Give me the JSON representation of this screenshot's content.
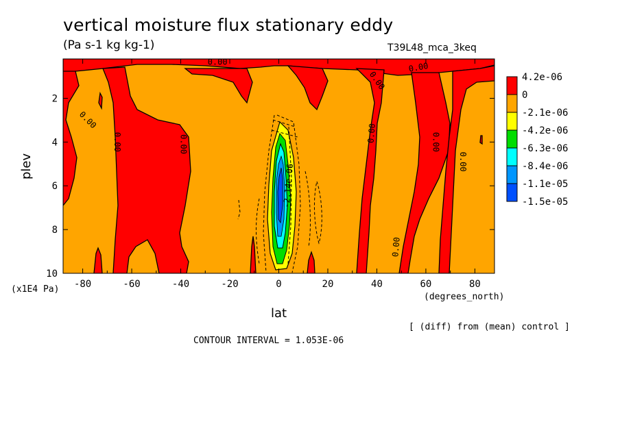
{
  "title": "vertical moisture flux stationary eddy",
  "subtitle": "(Pa s-1 kg kg-1)",
  "run_name": "T39L48_mca_3keq",
  "xunit": "(degrees_north)",
  "yunit": "(x1E4 Pa)",
  "diff_note": "[ (diff) from (mean) control ]",
  "contour_interval": "CONTOUR INTERVAL = 1.053E-06",
  "colors": {
    "red": "#ff0000",
    "orange": "#ffa500",
    "yellow": "#ffff00",
    "green": "#00dd00",
    "cyan": "#00ffff",
    "lightblue": "#0096ff",
    "blue": "#0050ff"
  },
  "chart_data": {
    "type": "heatmap",
    "title": "vertical moisture flux stationary eddy",
    "xlabel": "lat",
    "ylabel": "plev",
    "xlim": [
      -88,
      88
    ],
    "ylim": [
      10,
      0.2
    ],
    "x_ticks": [
      {
        "value": -80,
        "label": "-80"
      },
      {
        "value": -60,
        "label": "-60"
      },
      {
        "value": -40,
        "label": "-40"
      },
      {
        "value": -20,
        "label": "-20"
      },
      {
        "value": 0,
        "label": "0"
      },
      {
        "value": 20,
        "label": "20"
      },
      {
        "value": 40,
        "label": "40"
      },
      {
        "value": 60,
        "label": "60"
      },
      {
        "value": 80,
        "label": "80"
      }
    ],
    "y_ticks": [
      {
        "value": 2,
        "label": "2"
      },
      {
        "value": 4,
        "label": "4"
      },
      {
        "value": 6,
        "label": "6"
      },
      {
        "value": 8,
        "label": "8"
      },
      {
        "value": 10,
        "label": "10"
      }
    ],
    "colorbar": {
      "labels": [
        "4.2e-06",
        "0",
        "-2.1e-06",
        "-4.2e-06",
        "-6.3e-06",
        "-8.4e-06",
        "-1.1e-05",
        "-1.5e-05"
      ],
      "colors": [
        "#ff0000",
        "#ffa500",
        "#ffff00",
        "#00dd00",
        "#00ffff",
        "#0096ff",
        "#0050ff"
      ]
    },
    "contour_labels": [
      {
        "text": "0.00",
        "lat": -78,
        "plev": 3.0,
        "angle": 45
      },
      {
        "text": "0.00",
        "lat": -66,
        "plev": 4.0,
        "angle": 90
      },
      {
        "text": "0.00",
        "lat": -39,
        "plev": 4.1,
        "angle": 90
      },
      {
        "text": "0.00",
        "lat": -25,
        "plev": 0.35,
        "angle": 0
      },
      {
        "text": "0.00",
        "lat": 40,
        "plev": 1.2,
        "angle": 55
      },
      {
        "text": "0.00",
        "lat": 38,
        "plev": 3.6,
        "angle": -85
      },
      {
        "text": "0.00",
        "lat": 57,
        "plev": 0.6,
        "angle": -10
      },
      {
        "text": "0.00",
        "lat": 64,
        "plev": 4.0,
        "angle": 90
      },
      {
        "text": "0.00",
        "lat": 75,
        "plev": 4.9,
        "angle": 90
      },
      {
        "text": "0.00",
        "lat": 48,
        "plev": 8.8,
        "angle": -85
      },
      {
        "text": "-2.14e-06",
        "lat": 4,
        "plev": 6.0,
        "angle": -85
      }
    ]
  }
}
